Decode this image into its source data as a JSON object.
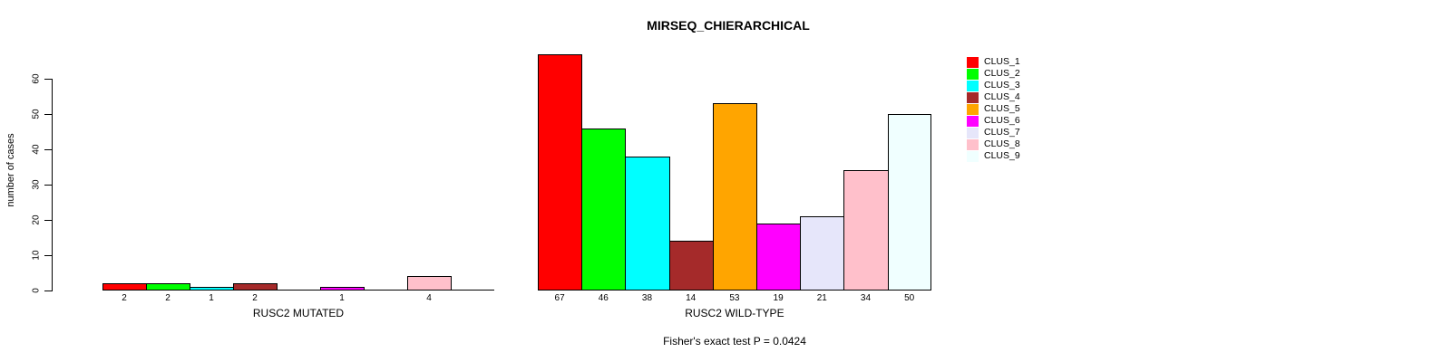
{
  "chart_data": {
    "type": "bar",
    "title": "MIRSEQ_CHIERARCHICAL",
    "ylabel": "number of cases",
    "ylim": [
      0,
      60
    ],
    "yticks": [
      0,
      10,
      20,
      30,
      40,
      50,
      60
    ],
    "grid": false,
    "legend_position": "right",
    "annotation": "Fisher's exact test P = 0.0424",
    "categories": [
      "CLUS_1",
      "CLUS_2",
      "CLUS_3",
      "CLUS_4",
      "CLUS_5",
      "CLUS_6",
      "CLUS_7",
      "CLUS_8",
      "CLUS_9"
    ],
    "colors": [
      "#FF0000",
      "#00FF00",
      "#00FFFF",
      "#A52A2A",
      "#FFA500",
      "#FF00FF",
      "#E6E6FA",
      "#FFC0CB",
      "#F0FFFF"
    ],
    "bar_border_color": "#000000",
    "groups": [
      {
        "label": "RUSC2 MUTATED",
        "values": [
          2,
          2,
          1,
          2,
          0,
          1,
          0,
          4,
          0
        ]
      },
      {
        "label": "RUSC2 WILD-TYPE",
        "values": [
          67,
          46,
          38,
          14,
          53,
          19,
          21,
          34,
          50
        ]
      }
    ]
  }
}
